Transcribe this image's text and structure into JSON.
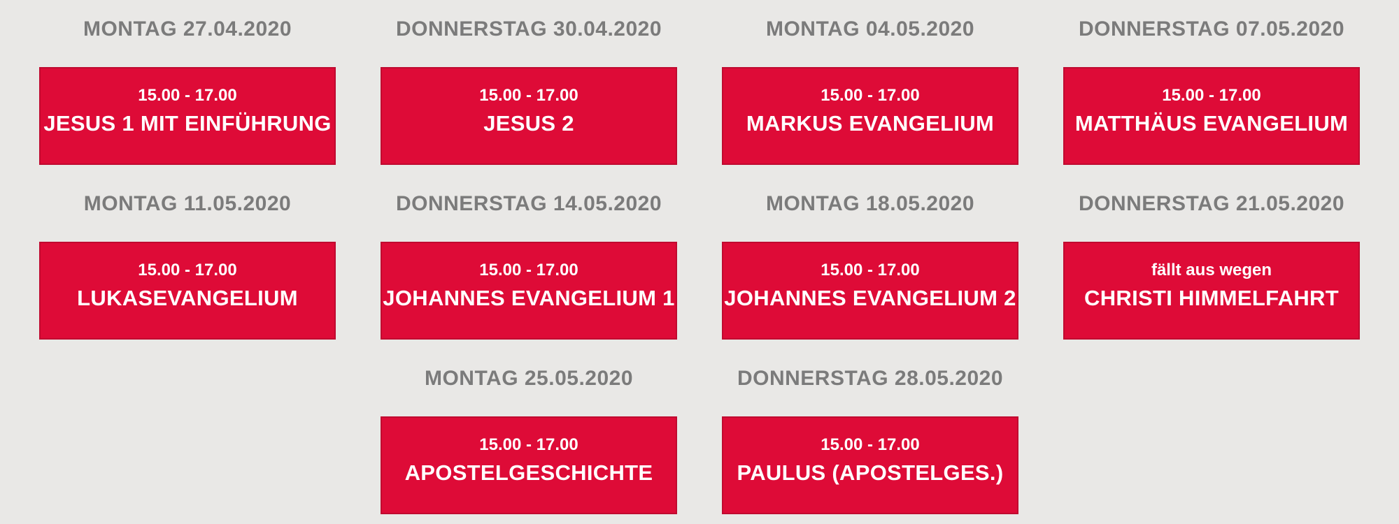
{
  "colors": {
    "background": "#e9e8e6",
    "card_background": "#de0b37",
    "card_border": "#c00a30",
    "header_text": "#7b7b7b",
    "card_text": "#ffffff"
  },
  "schedule": {
    "cells": [
      {
        "day": "MONTAG 27.04.2020",
        "line1": "15.00 - 17.00",
        "line2": "JESUS 1 MIT EINFÜHRUNG"
      },
      {
        "day": "DONNERSTAG 30.04.2020",
        "line1": "15.00 - 17.00",
        "line2": "JESUS 2"
      },
      {
        "day": "MONTAG 04.05.2020",
        "line1": "15.00 - 17.00",
        "line2": "MARKUS EVANGELIUM"
      },
      {
        "day": "DONNERSTAG 07.05.2020",
        "line1": "15.00 - 17.00",
        "line2": "MATTHÄUS EVANGELIUM"
      },
      {
        "day": "MONTAG 11.05.2020",
        "line1": "15.00 - 17.00",
        "line2": "LUKASEVANGELIUM"
      },
      {
        "day": "DONNERSTAG 14.05.2020",
        "line1": "15.00 - 17.00",
        "line2": "JOHANNES EVANGELIUM 1"
      },
      {
        "day": "MONTAG 18.05.2020",
        "line1": "15.00 - 17.00",
        "line2": "JOHANNES EVANGELIUM 2"
      },
      {
        "day": "DONNERSTAG 21.05.2020",
        "line1": "fällt aus wegen",
        "line2": "CHRISTI HIMMELFAHRT"
      },
      {
        "day": "MONTAG 25.05.2020",
        "line1": "15.00 - 17.00",
        "line2": "APOSTELGESCHICHTE"
      },
      {
        "day": "DONNERSTAG 28.05.2020",
        "line1": "15.00 - 17.00",
        "line2": "PAULUS (APOSTELGES.)"
      }
    ]
  }
}
